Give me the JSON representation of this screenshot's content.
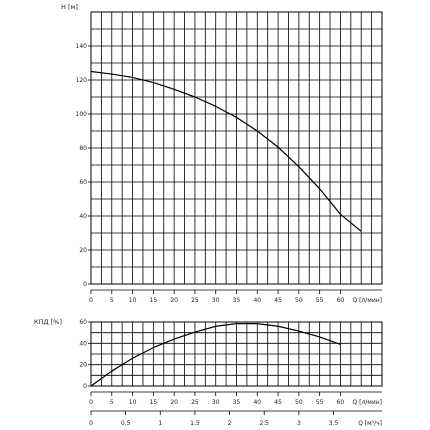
{
  "chart_data": [
    {
      "type": "line",
      "ylabel": "H [м]",
      "xlabel": "Q [л/мин]",
      "xlim": [
        0,
        70
      ],
      "ylim": [
        0,
        160
      ],
      "grid": true,
      "x_ticks": [
        0,
        5,
        10,
        15,
        20,
        25,
        30,
        35,
        40,
        45,
        50,
        55,
        60
      ],
      "x_tick_labels": [
        "0",
        "5",
        "10",
        "15",
        "20",
        "25",
        "30",
        "35",
        "40",
        "45",
        "50",
        "55",
        "60"
      ],
      "y_ticks": [
        0,
        20,
        40,
        60,
        80,
        100,
        120,
        140
      ],
      "y_tick_labels": [
        "0",
        "20",
        "40",
        "60",
        "80",
        "100",
        "120",
        "140"
      ],
      "series": [
        {
          "x": [
            0,
            5,
            10,
            15,
            20,
            25,
            30,
            35,
            40,
            45,
            50,
            55,
            60,
            65
          ],
          "y": [
            125,
            123.5,
            121.5,
            118.5,
            114.5,
            110,
            104.5,
            98,
            90,
            80.5,
            69,
            56,
            41,
            31
          ]
        }
      ]
    },
    {
      "type": "line",
      "ylabel": "КПД [%]",
      "xlabel": "Q [л/мин]",
      "xlim": [
        0,
        70
      ],
      "ylim": [
        0,
        60
      ],
      "grid": true,
      "x_ticks": [
        0,
        5,
        10,
        15,
        20,
        25,
        30,
        35,
        40,
        45,
        50,
        55,
        60
      ],
      "x_tick_labels": [
        "0",
        "5",
        "10",
        "15",
        "20",
        "25",
        "30",
        "35",
        "40",
        "45",
        "50",
        "55",
        "60"
      ],
      "y_ticks": [
        0,
        20,
        40,
        60
      ],
      "y_tick_labels": [
        "0",
        "20",
        "40",
        "60"
      ],
      "series": [
        {
          "x": [
            0,
            5,
            10,
            15,
            20,
            25,
            30,
            35,
            40,
            45,
            50,
            55,
            60
          ],
          "y": [
            0,
            14,
            26,
            36,
            44,
            50.5,
            56,
            58.5,
            58.5,
            56,
            51.5,
            46,
            39
          ]
        }
      ]
    }
  ],
  "secondary_axis": {
    "label": "Q [м³/ч]",
    "ticks": [
      0,
      0.5,
      1,
      1.5,
      2,
      2.5,
      3,
      3.5
    ],
    "tick_labels": [
      "0",
      "0.5",
      "1",
      "1.5",
      "2",
      "2.5",
      "3",
      "3.5"
    ]
  }
}
